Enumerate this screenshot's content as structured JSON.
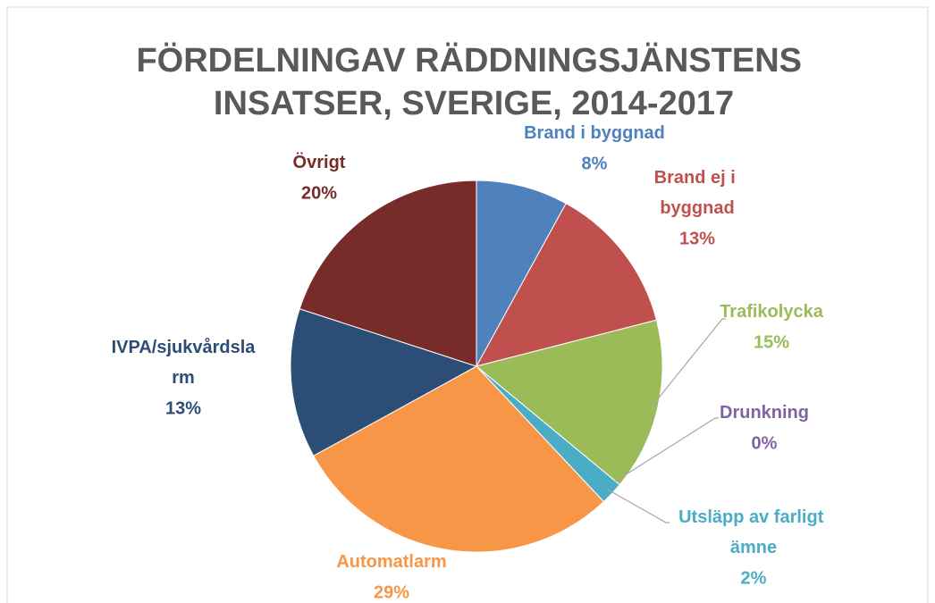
{
  "chart_data": {
    "type": "pie",
    "title": "FÖRDELNINGAV RÄDDNINGSJÄNSTENS INSATSER, SVERIGE, 2014-2017",
    "categories": [
      "Brand i byggnad",
      "Brand ej i byggnad",
      "Trafikolycka",
      "Drunkning",
      "Utsläpp av farligt ämne",
      "Automatlarm",
      "IVPA/sjukvårdslarm",
      "Övrigt"
    ],
    "values": [
      8,
      13,
      15,
      0,
      2,
      29,
      13,
      20
    ],
    "value_labels": [
      "8%",
      "13%",
      "15%",
      "0%",
      "2%",
      "29%",
      "13%",
      "20%"
    ],
    "colors": [
      "#4f81bd",
      "#c0504d",
      "#9bbb59",
      "#8064a2",
      "#4bacc6",
      "#f79646",
      "#2c4d75",
      "#772c2a"
    ]
  }
}
